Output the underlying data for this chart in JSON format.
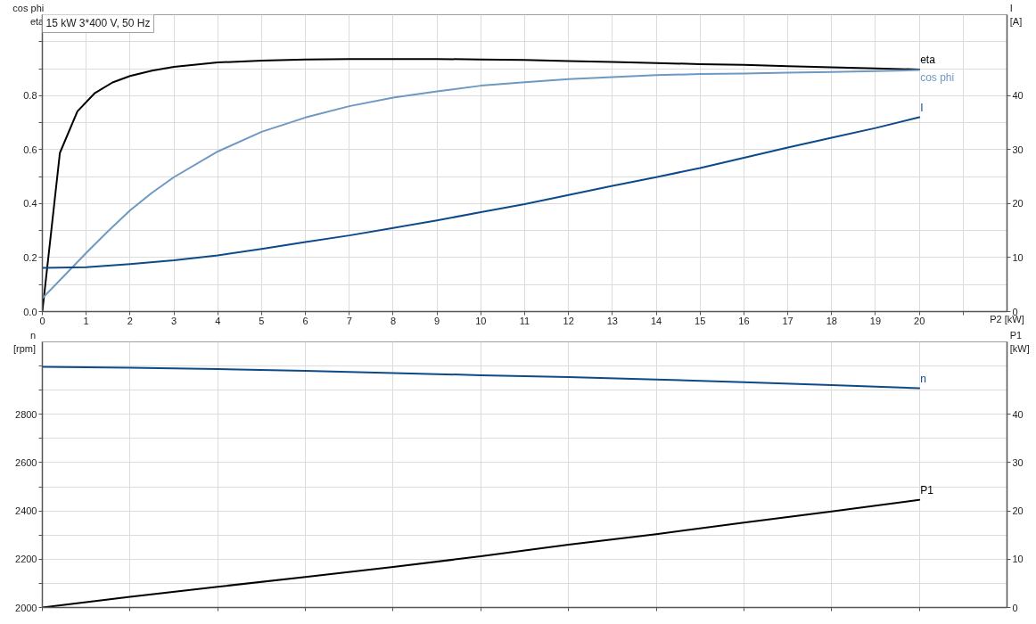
{
  "chart_data": [
    {
      "type": "line",
      "title": "15 kW 3*400 V, 50 Hz",
      "ylabel": "cos phi\neta",
      "y2label": "I\n[A]",
      "xlabel": "P2 [kW]",
      "xlim": [
        0,
        22
      ],
      "xticks": [
        0,
        1,
        2,
        3,
        4,
        5,
        6,
        7,
        8,
        9,
        10,
        11,
        12,
        13,
        14,
        15,
        16,
        17,
        18,
        19,
        20,
        {
          "value": 21,
          "label": null
        }
      ],
      "ylim": [
        0,
        1.1
      ],
      "yticks": [
        {
          "value": 0,
          "label": "0.0"
        },
        {
          "value": 0.1,
          "label": null
        },
        0.2,
        {
          "value": 0.3,
          "label": null
        },
        0.4,
        {
          "value": 0.5,
          "label": null
        },
        0.6,
        {
          "value": 0.7,
          "label": null
        },
        0.8,
        {
          "value": 0.9,
          "label": null
        },
        {
          "value": 1.0,
          "label": null
        }
      ],
      "y2lim": [
        0,
        55
      ],
      "y2ticks": [
        0,
        10,
        20,
        30,
        40
      ],
      "grid": true,
      "series": [
        {
          "name": "eta",
          "color": "#000000",
          "x": [
            0,
            0.4,
            0.8,
            1.2,
            1.6,
            2,
            2.5,
            3,
            4,
            5,
            6,
            7,
            8,
            9,
            10,
            11,
            12,
            13,
            14,
            15,
            16,
            17,
            18,
            19,
            20
          ],
          "values": [
            0,
            0.588,
            0.742,
            0.81,
            0.849,
            0.873,
            0.893,
            0.907,
            0.923,
            0.93,
            0.934,
            0.936,
            0.936,
            0.936,
            0.934,
            0.932,
            0.928,
            0.925,
            0.921,
            0.917,
            0.914,
            0.909,
            0.905,
            0.901,
            0.897
          ]
        },
        {
          "name": "cos phi",
          "color": "#6e99c2",
          "x": [
            0,
            0.5,
            1,
            1.5,
            2,
            2.5,
            3,
            4,
            5,
            6,
            7,
            8,
            9,
            10,
            11,
            12,
            13,
            14,
            15,
            16,
            17,
            18,
            19,
            20
          ],
          "values": [
            0.049,
            0.133,
            0.217,
            0.298,
            0.375,
            0.44,
            0.498,
            0.593,
            0.666,
            0.719,
            0.761,
            0.793,
            0.816,
            0.837,
            0.85,
            0.861,
            0.869,
            0.876,
            0.88,
            0.882,
            0.885,
            0.888,
            0.891,
            0.895
          ]
        },
        {
          "name": "I",
          "color": "#0d4a8a",
          "axis": "y2",
          "x": [
            0,
            1,
            2,
            3,
            4,
            5,
            6,
            7,
            8,
            9,
            10,
            11,
            12,
            13,
            14,
            15,
            16,
            17,
            18,
            19,
            20
          ],
          "values": [
            8.1,
            8.2,
            8.8,
            9.5,
            10.4,
            11.6,
            12.9,
            14.1,
            15.5,
            16.9,
            18.4,
            19.9,
            21.6,
            23.3,
            24.9,
            26.6,
            28.5,
            30.4,
            32.2,
            34.0,
            36.0
          ]
        }
      ]
    },
    {
      "type": "line",
      "ylabel": "n\n[rpm]",
      "y2label": "P1\n[kW]",
      "tick_labels": "y",
      "xlim": [
        0,
        22
      ],
      "xticks": [
        {
          "value": 0,
          "label": null
        },
        {
          "value": 2,
          "label": null
        },
        {
          "value": 4,
          "label": null
        },
        {
          "value": 6,
          "label": null
        },
        {
          "value": 8,
          "label": null
        },
        {
          "value": 10,
          "label": null
        },
        {
          "value": 12,
          "label": null
        },
        {
          "value": 14,
          "label": null
        },
        {
          "value": 16,
          "label": null
        },
        {
          "value": 18,
          "label": null
        },
        {
          "value": 20,
          "label": null
        }
      ],
      "ylim": [
        2000,
        3100
      ],
      "yticks": [
        2000,
        {
          "value": 2100,
          "label": null
        },
        2200,
        {
          "value": 2300,
          "label": null
        },
        2400,
        {
          "value": 2500,
          "label": null
        },
        2600,
        {
          "value": 2700,
          "label": null
        },
        2800,
        {
          "value": 2900,
          "label": null
        },
        {
          "value": 3000,
          "label": null
        }
      ],
      "y2lim": [
        0,
        55
      ],
      "y2ticks": [
        0,
        10,
        20,
        30,
        40
      ],
      "grid": true,
      "series": [
        {
          "name": "n",
          "color": "#0d4a8a",
          "x": [
            0,
            2,
            4,
            6,
            8,
            10,
            12,
            14,
            16,
            18,
            20
          ],
          "values": [
            2997,
            2993,
            2987,
            2980,
            2971,
            2962,
            2954,
            2944,
            2933,
            2921,
            2908
          ]
        },
        {
          "name": "P1",
          "color": "#000000",
          "axis": "y2",
          "x": [
            0,
            2,
            4,
            6,
            8,
            10,
            12,
            14,
            16,
            18,
            20
          ],
          "values": [
            0,
            2.2,
            4.3,
            6.3,
            8.4,
            10.6,
            13.0,
            15.2,
            17.6,
            19.9,
            22.3
          ]
        }
      ]
    }
  ]
}
